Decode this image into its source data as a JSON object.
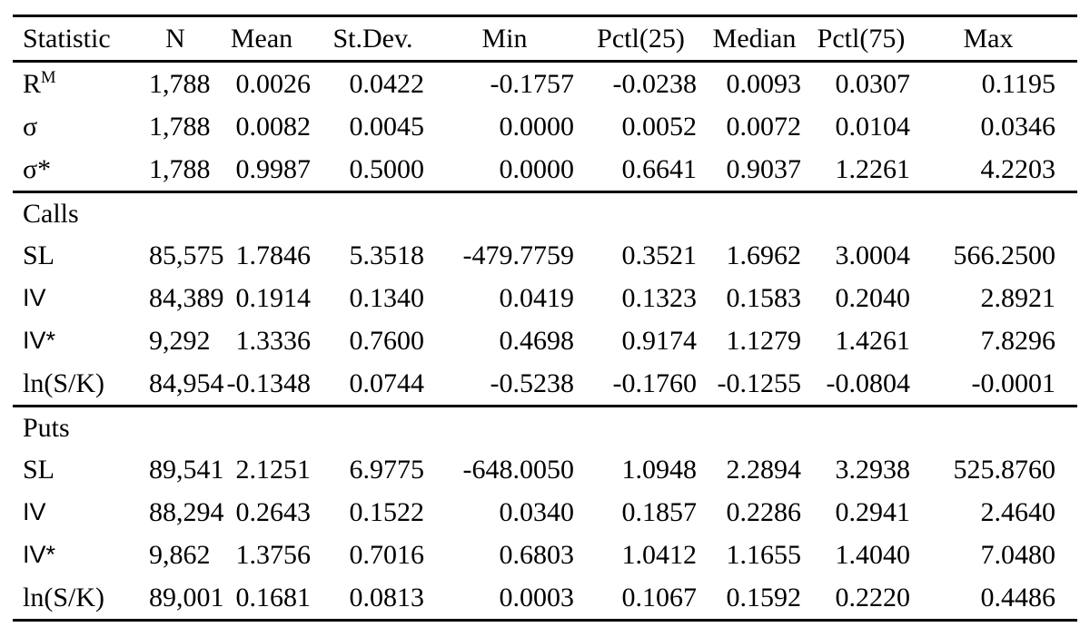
{
  "table": {
    "columns": [
      "Statistic",
      "N",
      "Mean",
      "St.Dev.",
      "Min",
      "Pctl(25)",
      "Median",
      "Pctl(75)",
      "Max"
    ],
    "sections": [
      {
        "label": "",
        "rows": [
          {
            "stat": "R",
            "stat_sup": "M",
            "values": [
              "1,788",
              "0.0026",
              "0.0422",
              "-0.1757",
              "-0.0238",
              "0.0093",
              "0.0307",
              "0.1195"
            ]
          },
          {
            "stat": "σ",
            "values": [
              "1,788",
              "0.0082",
              "0.0045",
              "0.0000",
              "0.0052",
              "0.0072",
              "0.0104",
              "0.0346"
            ]
          },
          {
            "stat": "σ*",
            "values": [
              "1,788",
              "0.9987",
              "0.5000",
              "0.0000",
              "0.6641",
              "0.9037",
              "1.2261",
              "4.2203"
            ]
          }
        ]
      },
      {
        "label": "Calls",
        "rows": [
          {
            "stat": "SL",
            "values": [
              "85,575",
              "1.7846",
              "5.3518",
              "-479.7759",
              "0.3521",
              "1.6962",
              "3.0004",
              "566.2500"
            ]
          },
          {
            "stat": "IV",
            "label_sans": true,
            "values": [
              "84,389",
              "0.1914",
              "0.1340",
              "0.0419",
              "0.1323",
              "0.1583",
              "0.2040",
              "2.8921"
            ]
          },
          {
            "stat": "IV*",
            "label_sans": true,
            "values": [
              "9,292",
              "1.3336",
              "0.7600",
              "0.4698",
              "0.9174",
              "1.1279",
              "1.4261",
              "7.8296"
            ]
          },
          {
            "stat": "ln(S/K)",
            "values": [
              "84,954",
              "-0.1348",
              "0.0744",
              "-0.5238",
              "-0.1760",
              "-0.1255",
              "-0.0804",
              "-0.0001"
            ]
          }
        ]
      },
      {
        "label": "Puts",
        "rows": [
          {
            "stat": "SL",
            "values": [
              "89,541",
              "2.1251",
              "6.9775",
              "-648.0050",
              "1.0948",
              "2.2894",
              "3.2938",
              "525.8760"
            ]
          },
          {
            "stat": "IV",
            "label_sans": true,
            "values": [
              "88,294",
              "0.2643",
              "0.1522",
              "0.0340",
              "0.1857",
              "0.2286",
              "0.2941",
              "2.4640"
            ]
          },
          {
            "stat": "IV*",
            "label_sans": true,
            "values": [
              "9,862",
              "1.3756",
              "0.7016",
              "0.6803",
              "1.0412",
              "1.1655",
              "1.4040",
              "7.0480"
            ]
          },
          {
            "stat": "ln(S/K)",
            "values": [
              "89,001",
              "0.1681",
              "0.0813",
              "0.0003",
              "0.1067",
              "0.1592",
              "0.2220",
              "0.4486"
            ]
          }
        ]
      }
    ]
  }
}
